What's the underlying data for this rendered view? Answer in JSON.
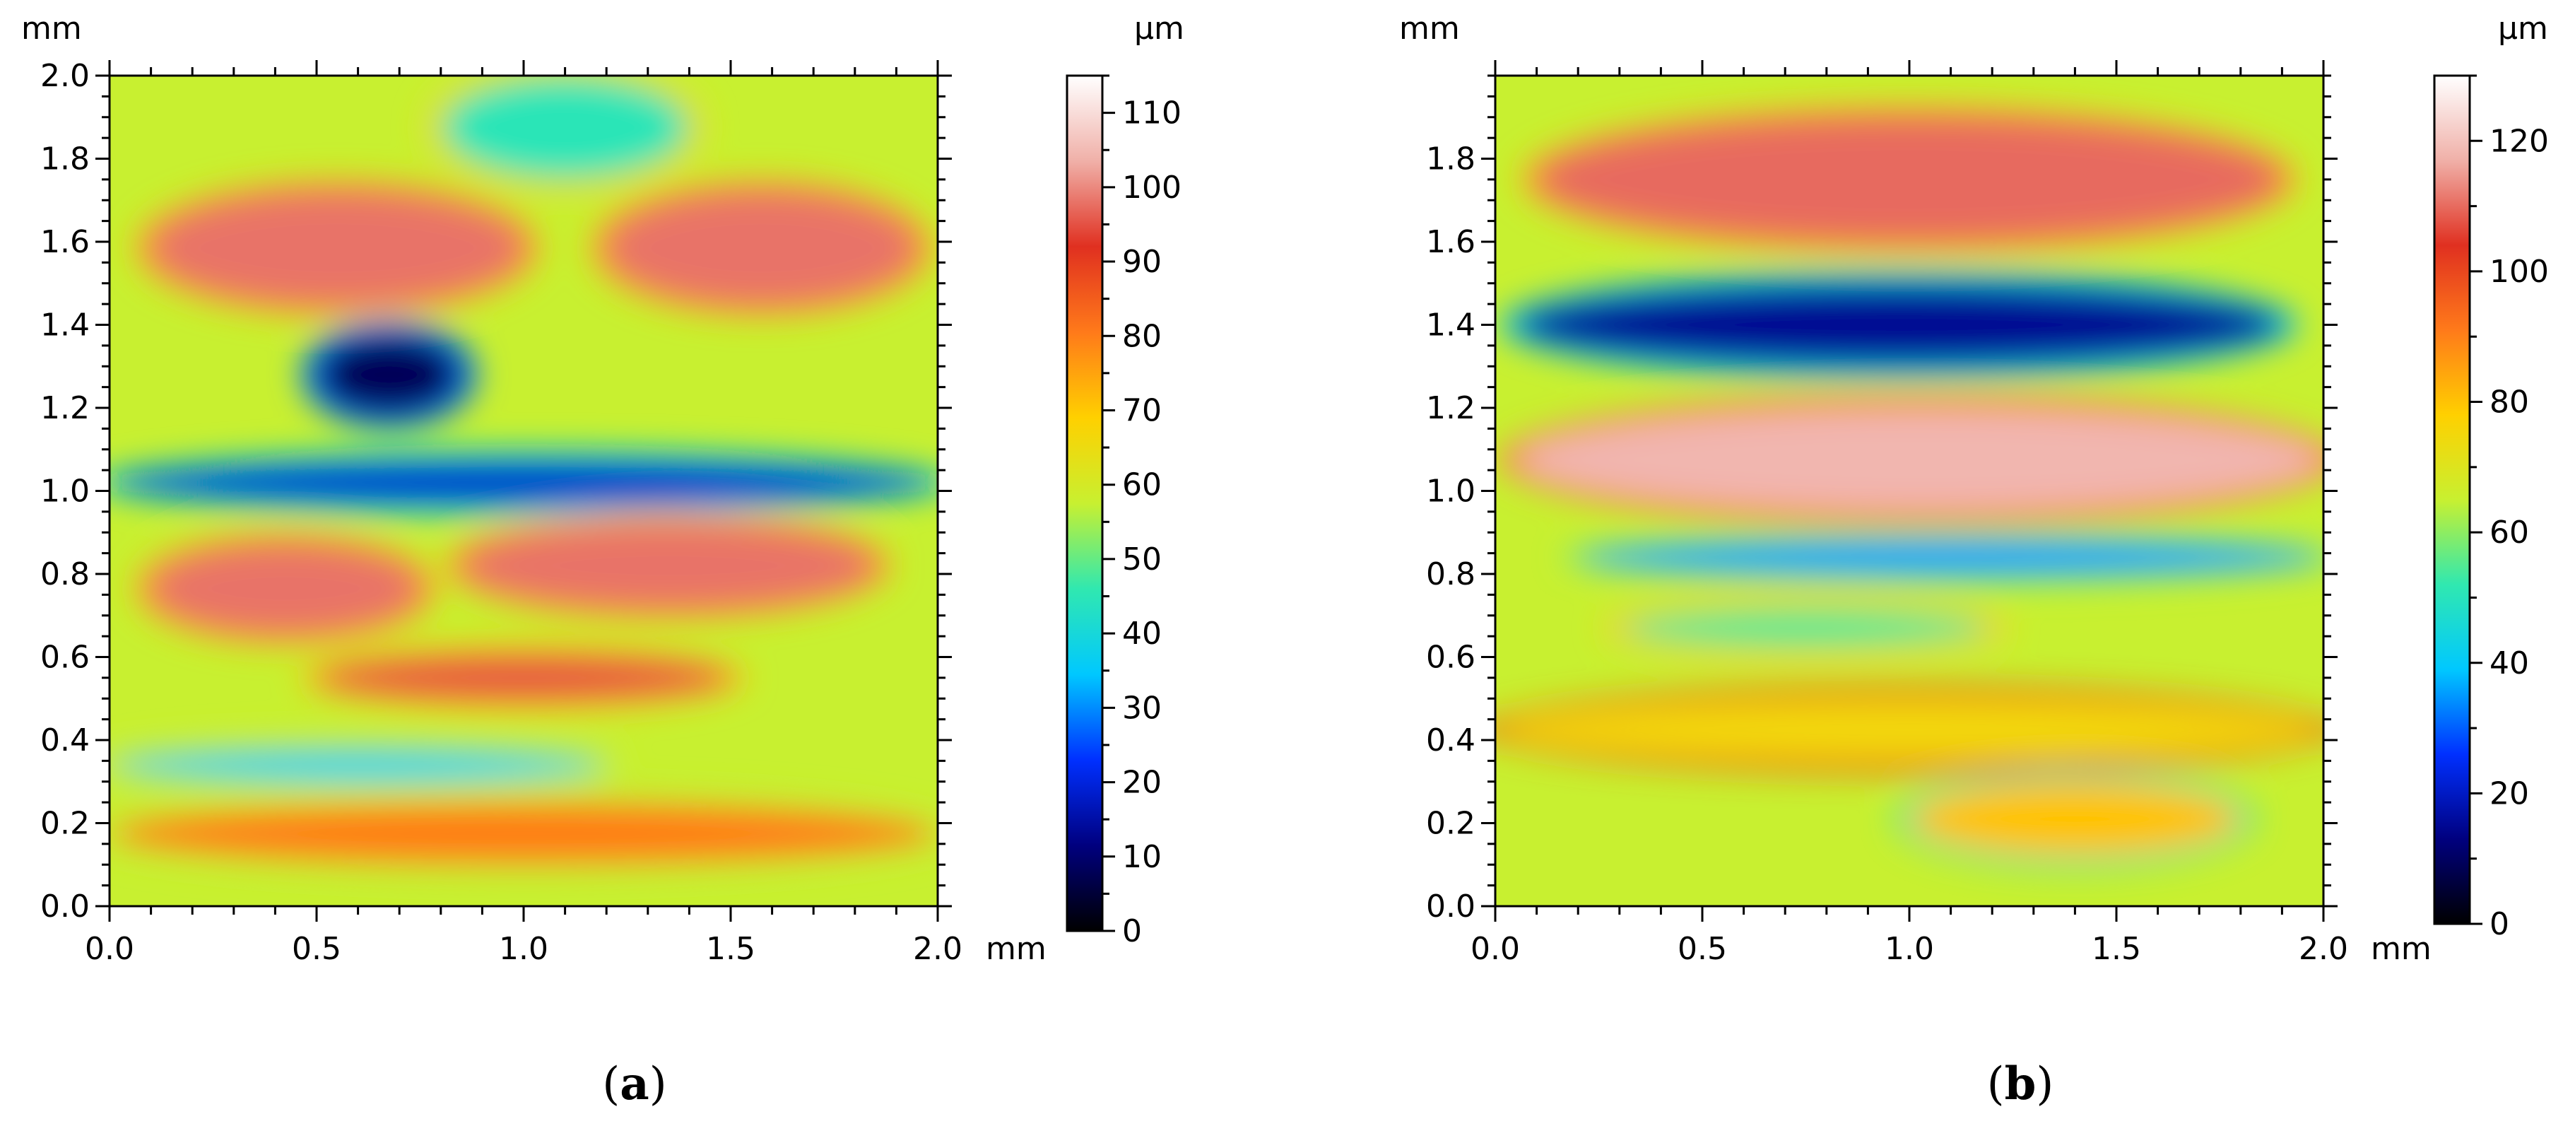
{
  "figure": {
    "panels": [
      {
        "caption_letter": "a",
        "x_unit": "mm",
        "y_unit": "mm",
        "colorbar_unit": "µm"
      },
      {
        "caption_letter": "b",
        "x_unit": "mm",
        "y_unit": "mm",
        "colorbar_unit": "µm"
      }
    ]
  },
  "chart_data": [
    {
      "type": "heatmap",
      "title": "",
      "xlabel": "mm",
      "ylabel": "mm",
      "xlim": [
        0,
        2.0
      ],
      "ylim": [
        0,
        2.0
      ],
      "x_ticks": [
        "0.0",
        "0.5",
        "1.0",
        "1.5",
        "2.0"
      ],
      "y_ticks": [
        "0.0",
        "0.2",
        "0.4",
        "0.6",
        "0.8",
        "1.0",
        "1.2",
        "1.4",
        "1.6",
        "1.8",
        "2.0"
      ],
      "colorbar": {
        "label": "µm",
        "range": [
          0,
          115
        ],
        "ticks": [
          "0",
          "10",
          "20",
          "30",
          "40",
          "50",
          "60",
          "70",
          "80",
          "90",
          "100",
          "110"
        ],
        "colormap": [
          "#000000",
          "#00007f",
          "#0030ff",
          "#00c8ff",
          "#30e8b0",
          "#c8f030",
          "#ffd000",
          "#ff7a1a",
          "#e03020",
          "#f0b0a8",
          "#ffffff"
        ]
      },
      "features": [
        {
          "x": [
            0.1,
            1.0
          ],
          "y": [
            1.45,
            1.72
          ],
          "height_um": 98
        },
        {
          "x": [
            1.2,
            1.95
          ],
          "y": [
            1.45,
            1.72
          ],
          "height_um": 98
        },
        {
          "x": [
            0.5,
            0.85
          ],
          "y": [
            1.18,
            1.38
          ],
          "height_um": 8
        },
        {
          "x": [
            0.0,
            2.0
          ],
          "y": [
            0.97,
            1.07
          ],
          "height_um": 18
        },
        {
          "x": [
            0.1,
            0.75
          ],
          "y": [
            0.66,
            0.87
          ],
          "height_um": 98
        },
        {
          "x": [
            0.85,
            1.85
          ],
          "y": [
            0.72,
            0.92
          ],
          "height_um": 98
        },
        {
          "x": [
            0.5,
            1.5
          ],
          "y": [
            0.5,
            0.6
          ],
          "height_um": 95
        },
        {
          "x": [
            0.0,
            1.2
          ],
          "y": [
            0.3,
            0.38
          ],
          "height_um": 38
        },
        {
          "x": [
            0.0,
            2.0
          ],
          "y": [
            0.1,
            0.25
          ],
          "height_um": 80
        },
        {
          "x": [
            0.8,
            1.4
          ],
          "y": [
            1.75,
            2.0
          ],
          "height_um": 45
        }
      ]
    },
    {
      "type": "heatmap",
      "title": "",
      "xlabel": "mm",
      "ylabel": "mm",
      "xlim": [
        0,
        2.0
      ],
      "ylim": [
        0,
        2.0
      ],
      "x_ticks": [
        "0.0",
        "0.5",
        "1.0",
        "1.5",
        "2.0"
      ],
      "y_ticks": [
        "0.0",
        "0.2",
        "0.4",
        "0.6",
        "0.8",
        "1.0",
        "1.2",
        "1.4",
        "1.6",
        "1.8"
      ],
      "colorbar": {
        "label": "µm",
        "range": [
          0,
          130
        ],
        "ticks": [
          "0",
          "20",
          "40",
          "60",
          "80",
          "100",
          "120"
        ],
        "colormap": [
          "#000000",
          "#00007f",
          "#0030ff",
          "#00c8ff",
          "#30e8b0",
          "#c8f030",
          "#ffd000",
          "#ff7a1a",
          "#e03020",
          "#f0b0a8",
          "#ffffff"
        ]
      },
      "features": [
        {
          "x": [
            0.1,
            1.9
          ],
          "y": [
            1.6,
            1.9
          ],
          "height_um": 110
        },
        {
          "x": [
            0.05,
            1.9
          ],
          "y": [
            1.3,
            1.5
          ],
          "height_um": 15
        },
        {
          "x": [
            0.05,
            2.0
          ],
          "y": [
            0.95,
            1.2
          ],
          "height_um": 118
        },
        {
          "x": [
            0.2,
            2.0
          ],
          "y": [
            0.8,
            0.88
          ],
          "height_um": 35
        },
        {
          "x": [
            0.3,
            1.2
          ],
          "y": [
            0.62,
            0.72
          ],
          "height_um": 55
        },
        {
          "x": [
            0.0,
            2.0
          ],
          "y": [
            0.35,
            0.5
          ],
          "height_um": 75
        },
        {
          "x": [
            1.0,
            1.8
          ],
          "y": [
            0.12,
            0.3
          ],
          "height_um": 80
        }
      ]
    }
  ]
}
